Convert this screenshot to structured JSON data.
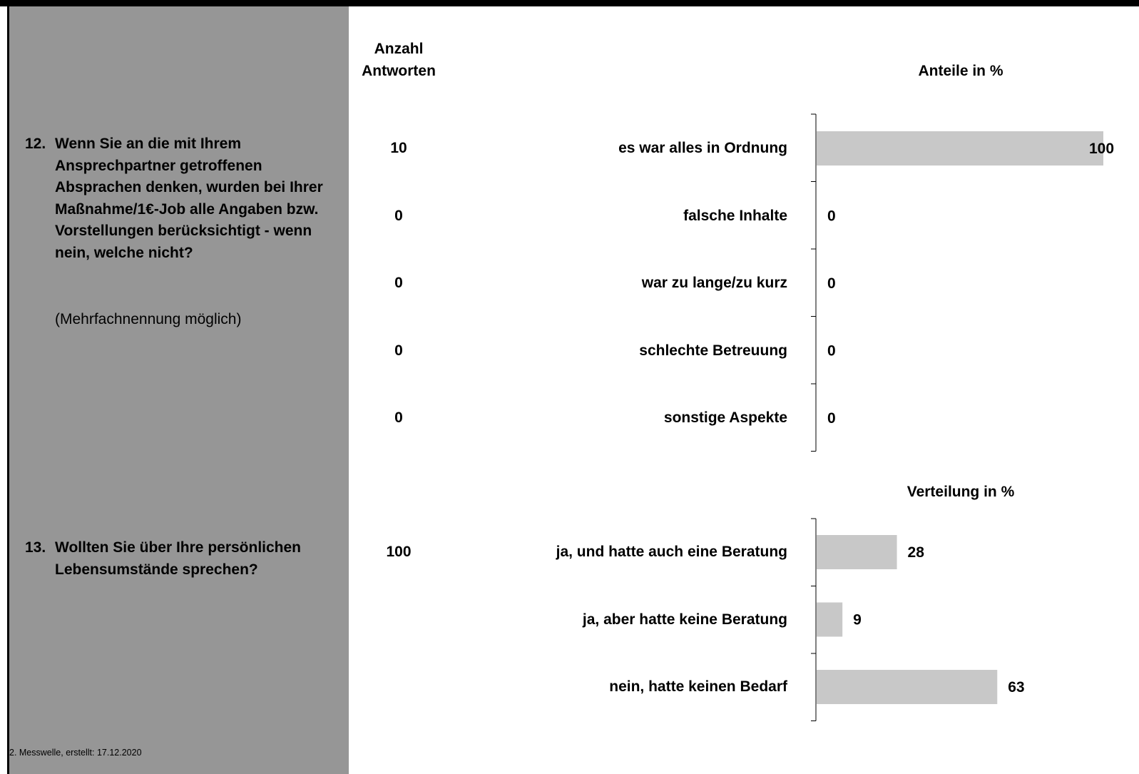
{
  "header": {
    "count_label": "Anzahl\nAntworten",
    "share_label": "Anteile in %",
    "distribution_label": "Verteilung in %"
  },
  "footer": "2. Messwelle, erstellt: 17.12.2020",
  "questions": [
    {
      "number": "12.",
      "text": "Wenn Sie an die mit Ihrem Ansprechpartner getroffenen Absprachen denken, wurden bei Ihrer Maßnahme/1€-Job alle Angaben bzw. Vorstellungen berücksichtigt - wenn nein, welche nicht?",
      "note": "(Mehrfachnennung möglich)"
    },
    {
      "number": "13.",
      "text": "Wollten Sie über Ihre persönlichen Lebensumstände sprechen?"
    }
  ],
  "chart_data": [
    {
      "type": "bar",
      "orientation": "horizontal",
      "title": "Anteile in %",
      "categories": [
        "es war alles in Ordnung",
        "falsche Inhalte",
        "war zu lange/zu kurz",
        "schlechte Betreuung",
        "sonstige Aspekte"
      ],
      "values": [
        100,
        0,
        0,
        0,
        0
      ],
      "counts": [
        "10",
        "0",
        "0",
        "0",
        "0"
      ],
      "xlim": [
        0,
        100
      ],
      "bar_color": "#c8c8c8"
    },
    {
      "type": "bar",
      "orientation": "horizontal",
      "title": "Verteilung in %",
      "categories": [
        "ja, und hatte auch eine Beratung",
        "ja, aber hatte keine Beratung",
        "nein, hatte keinen Bedarf"
      ],
      "values": [
        28,
        9,
        63
      ],
      "counts": [
        "100"
      ],
      "xlim": [
        0,
        100
      ],
      "bar_color": "#c8c8c8"
    }
  ],
  "colors": {
    "sidebar": "#969696",
    "bar": "#c8c8c8",
    "frame": "#000000"
  }
}
